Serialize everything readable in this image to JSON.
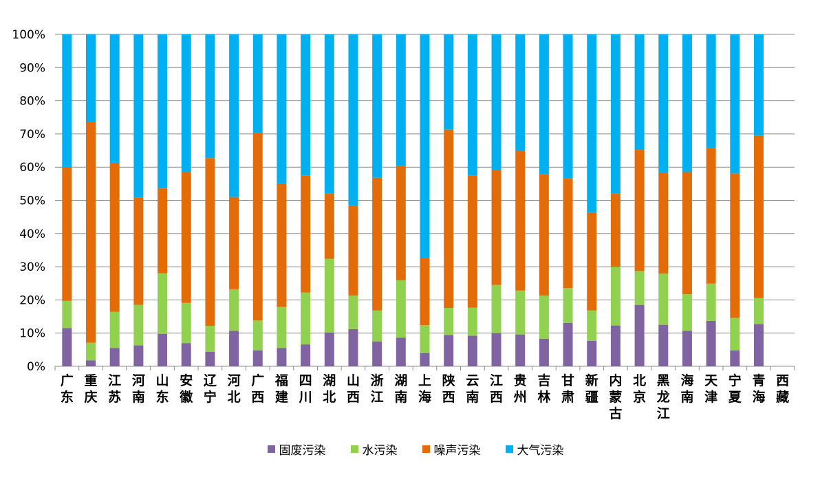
{
  "chart_data": {
    "type": "bar",
    "stacked": true,
    "percent": true,
    "categories": [
      "广东",
      "重庆",
      "江苏",
      "河南",
      "山东",
      "安徽",
      "辽宁",
      "河北",
      "广西",
      "福建",
      "四川",
      "湖北",
      "山西",
      "浙江",
      "湖南",
      "上海",
      "陕西",
      "云南",
      "江西",
      "贵州",
      "吉林",
      "甘肃",
      "新疆",
      "内蒙古",
      "北京",
      "黑龙江",
      "海南",
      "天津",
      "宁夏",
      "青海",
      "西藏"
    ],
    "series": [
      {
        "name": "固废污染",
        "color": "#8064A2",
        "values": [
          11.5,
          1.8,
          5.5,
          6.3,
          9.8,
          7.0,
          4.4,
          10.7,
          4.8,
          5.5,
          6.6,
          10.2,
          11.2,
          7.5,
          8.6,
          4.0,
          9.4,
          9.2,
          10.0,
          9.6,
          8.3,
          13.1,
          7.7,
          12.3,
          18.5,
          12.5,
          10.7,
          13.7,
          4.8,
          12.7,
          0
        ]
      },
      {
        "name": "水污染",
        "color": "#92D050",
        "values": [
          8.2,
          5.3,
          10.9,
          12.2,
          18.2,
          12.1,
          7.8,
          12.5,
          9.0,
          12.4,
          15.6,
          22.2,
          10.1,
          9.3,
          17.3,
          8.4,
          8.2,
          8.5,
          14.5,
          13.2,
          13.0,
          10.5,
          9.1,
          17.7,
          10.2,
          15.4,
          11.0,
          11.2,
          9.8,
          7.9,
          0
        ]
      },
      {
        "name": "噪声污染",
        "color": "#E36C09",
        "values": [
          40.3,
          66.6,
          44.9,
          32.3,
          25.6,
          39.4,
          50.5,
          27.8,
          56.6,
          37.0,
          35.3,
          19.6,
          27.0,
          40.0,
          34.4,
          20.3,
          53.7,
          39.8,
          34.6,
          42.2,
          36.5,
          33.0,
          29.5,
          22.1,
          36.5,
          30.4,
          36.8,
          40.8,
          43.5,
          48.8,
          0
        ]
      },
      {
        "name": "大气污染",
        "color": "#00B0F0",
        "values": [
          40.0,
          26.3,
          38.7,
          49.2,
          46.4,
          41.5,
          37.3,
          49.0,
          29.6,
          45.1,
          42.5,
          48.0,
          51.7,
          43.2,
          39.7,
          67.3,
          28.7,
          42.5,
          40.9,
          35.0,
          42.2,
          43.4,
          53.7,
          47.9,
          34.8,
          41.7,
          41.5,
          34.3,
          41.9,
          30.6,
          0
        ]
      }
    ],
    "y_ticks": [
      "0%",
      "10%",
      "20%",
      "30%",
      "40%",
      "50%",
      "60%",
      "70%",
      "80%",
      "90%",
      "100%"
    ],
    "ylim": [
      0,
      100
    ],
    "grid": true,
    "legend_position": "bottom"
  }
}
